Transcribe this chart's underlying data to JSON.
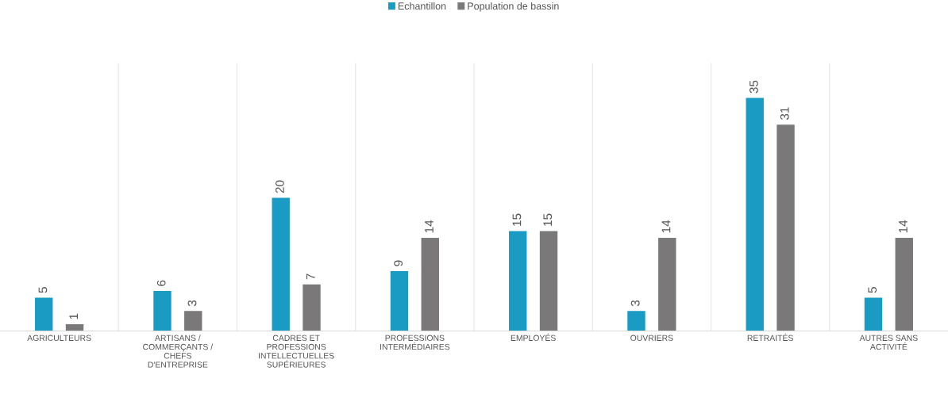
{
  "chart_data": {
    "type": "bar",
    "categories": [
      "AGRICULTEURS",
      "ARTISANS /\nCOMMERÇANTS /\nCHEFS\nD'ENTREPRISE",
      "CADRES ET\nPROFESSIONS\nINTELLECTUELLES\nSUPÉRIEURES",
      "PROFESSIONS\nINTERMÉDIAIRES",
      "EMPLOYÉS",
      "OUVRIERS",
      "RETRAITÉS",
      "AUTRES SANS\nACTIVITÉ"
    ],
    "series": [
      {
        "name": "Echantillon",
        "color": "#1a9bc4",
        "values": [
          5,
          6,
          20,
          9,
          15,
          3,
          35,
          5
        ]
      },
      {
        "name": "Population de bassin",
        "color": "#7a7878",
        "values": [
          1,
          3,
          7,
          14,
          15,
          14,
          31,
          14
        ]
      }
    ],
    "data_labels": true,
    "legend": "top"
  }
}
